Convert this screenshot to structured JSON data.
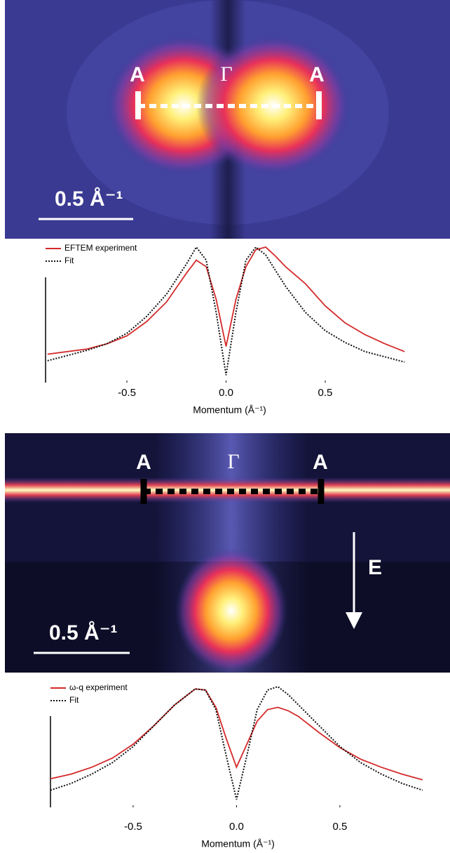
{
  "images": [
    {
      "labels": [
        "A",
        "Γ",
        "A"
      ],
      "scale_bar": "0.5 Å⁻¹"
    },
    {
      "labels": [
        "A",
        "Γ",
        "A"
      ],
      "scale_bar": "0.5 Å⁻¹",
      "arrow_label": "E"
    }
  ],
  "chart_data": [
    {
      "type": "line",
      "xlabel": "Momentum (Å⁻¹)",
      "legend": "upper left",
      "x": [
        -0.9,
        -0.8,
        -0.7,
        -0.6,
        -0.5,
        -0.4,
        -0.3,
        -0.2,
        -0.15,
        -0.1,
        -0.05,
        0,
        0.05,
        0.1,
        0.15,
        0.2,
        0.25,
        0.3,
        0.4,
        0.5,
        0.6,
        0.7,
        0.8,
        0.9
      ],
      "series": [
        {
          "name": "EFTEM experiment",
          "color": "#d42a2a",
          "style": "solid",
          "values": [
            0.18,
            0.2,
            0.22,
            0.26,
            0.32,
            0.43,
            0.58,
            0.8,
            0.9,
            0.85,
            0.6,
            0.24,
            0.6,
            0.85,
            0.98,
            1.0,
            0.93,
            0.85,
            0.72,
            0.55,
            0.42,
            0.33,
            0.26,
            0.2
          ]
        },
        {
          "name": "Fit",
          "color": "#111111",
          "style": "dotted",
          "values": [
            0.13,
            0.17,
            0.21,
            0.26,
            0.34,
            0.47,
            0.64,
            0.87,
            1.0,
            0.9,
            0.5,
            0.02,
            0.5,
            0.9,
            1.0,
            0.94,
            0.82,
            0.7,
            0.5,
            0.36,
            0.27,
            0.2,
            0.16,
            0.12
          ]
        }
      ],
      "xlim": [
        -0.91,
        0.91
      ],
      "xticks": [
        -0.5,
        {
          "value": 0,
          "label": "0.0"
        },
        0.5
      ],
      "ylim": [
        0,
        1
      ]
    },
    {
      "type": "line",
      "xlabel": "Momentum (Å⁻¹)",
      "legend": "upper left",
      "x": [
        -0.9,
        -0.8,
        -0.7,
        -0.6,
        -0.5,
        -0.4,
        -0.3,
        -0.2,
        -0.15,
        -0.1,
        -0.05,
        0,
        0.05,
        0.1,
        0.15,
        0.2,
        0.25,
        0.3,
        0.4,
        0.5,
        0.6,
        0.7,
        0.8,
        0.9
      ],
      "series": [
        {
          "name": "ω-q experiment",
          "color": "#d42a2a",
          "style": "solid",
          "values": [
            0.2,
            0.24,
            0.3,
            0.38,
            0.5,
            0.66,
            0.84,
            0.98,
            0.97,
            0.82,
            0.55,
            0.3,
            0.5,
            0.7,
            0.8,
            0.82,
            0.79,
            0.74,
            0.6,
            0.47,
            0.37,
            0.3,
            0.24,
            0.19
          ]
        },
        {
          "name": "Fit",
          "color": "#111111",
          "style": "dotted",
          "values": [
            0.1,
            0.16,
            0.24,
            0.34,
            0.48,
            0.66,
            0.84,
            0.98,
            0.97,
            0.8,
            0.4,
            0.02,
            0.4,
            0.8,
            0.97,
            1.0,
            0.93,
            0.84,
            0.66,
            0.48,
            0.34,
            0.24,
            0.16,
            0.1
          ]
        }
      ],
      "xlim": [
        -0.9,
        0.88
      ],
      "xticks": [
        -0.5,
        {
          "value": 0,
          "label": "0.0"
        },
        0.5
      ],
      "ylim": [
        0,
        1
      ]
    }
  ]
}
